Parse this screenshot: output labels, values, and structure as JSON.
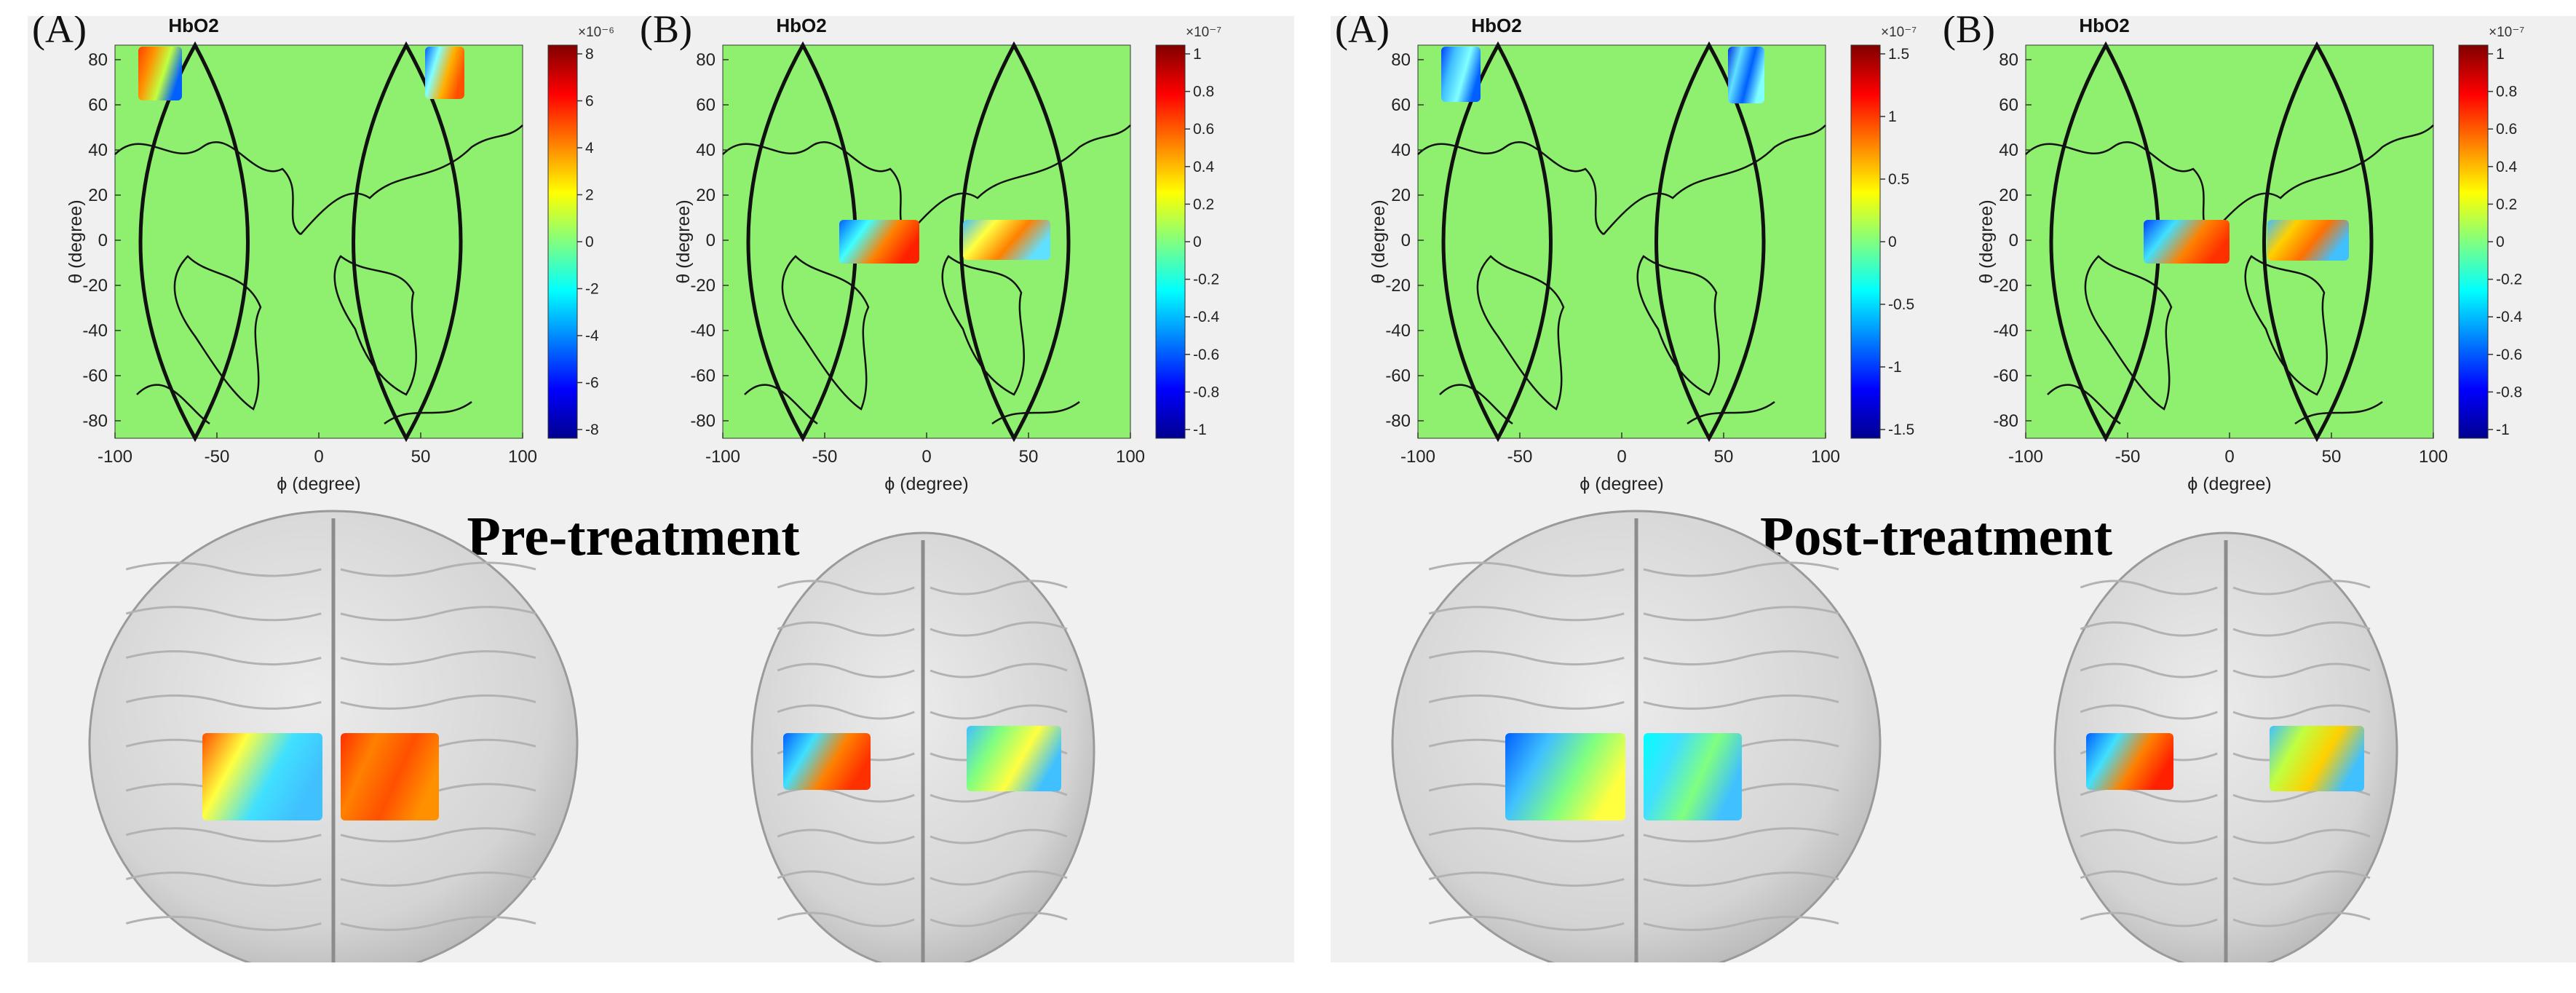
{
  "panels": [
    {
      "id": "pre",
      "caption": "Pre-treatment",
      "maps": [
        {
          "label": "(A)",
          "title": "HbO2",
          "colorbar": {
            "exponent": "×10⁻⁶",
            "ticks": [
              "8",
              "6",
              "4",
              "2",
              "0",
              "-2",
              "-4",
              "-6",
              "-8"
            ]
          }
        },
        {
          "label": "(B)",
          "title": "HbO2",
          "colorbar": {
            "exponent": "×10⁻⁷",
            "ticks": [
              "1",
              "0.8",
              "0.6",
              "0.4",
              "0.2",
              "0",
              "-0.2",
              "-0.4",
              "-0.6",
              "-0.8",
              "-1"
            ]
          }
        }
      ]
    },
    {
      "id": "post",
      "caption": "Post-treatment",
      "maps": [
        {
          "label": "(A)",
          "title": "HbO2",
          "colorbar": {
            "exponent": "×10⁻⁷",
            "ticks": [
              "1.5",
              "1",
              "0.5",
              "0",
              "-0.5",
              "-1",
              "-1.5"
            ]
          }
        },
        {
          "label": "(B)",
          "title": "HbO2",
          "colorbar": {
            "exponent": "×10⁻⁷",
            "ticks": [
              "1",
              "0.8",
              "0.6",
              "0.4",
              "0.2",
              "0",
              "-0.2",
              "-0.4",
              "-0.6",
              "-0.8",
              "-1"
            ]
          }
        }
      ]
    }
  ],
  "axes": {
    "x_label": "ϕ (degree)",
    "y_label": "θ (degree)",
    "x_ticks": [
      "-100",
      "-50",
      "0",
      "50",
      "100"
    ],
    "y_ticks": [
      "80",
      "60",
      "40",
      "20",
      "0",
      "-20",
      "-40",
      "-60",
      "-80"
    ]
  },
  "colors": {
    "map_background": "#8ef06e",
    "panel_background": "#f0f0f0",
    "brain": "#d4d4d4",
    "colormap": [
      "#00008f",
      "#0000ff",
      "#0080ff",
      "#00ffff",
      "#80ff80",
      "#ffff00",
      "#ff8000",
      "#ff0000",
      "#800000"
    ]
  }
}
